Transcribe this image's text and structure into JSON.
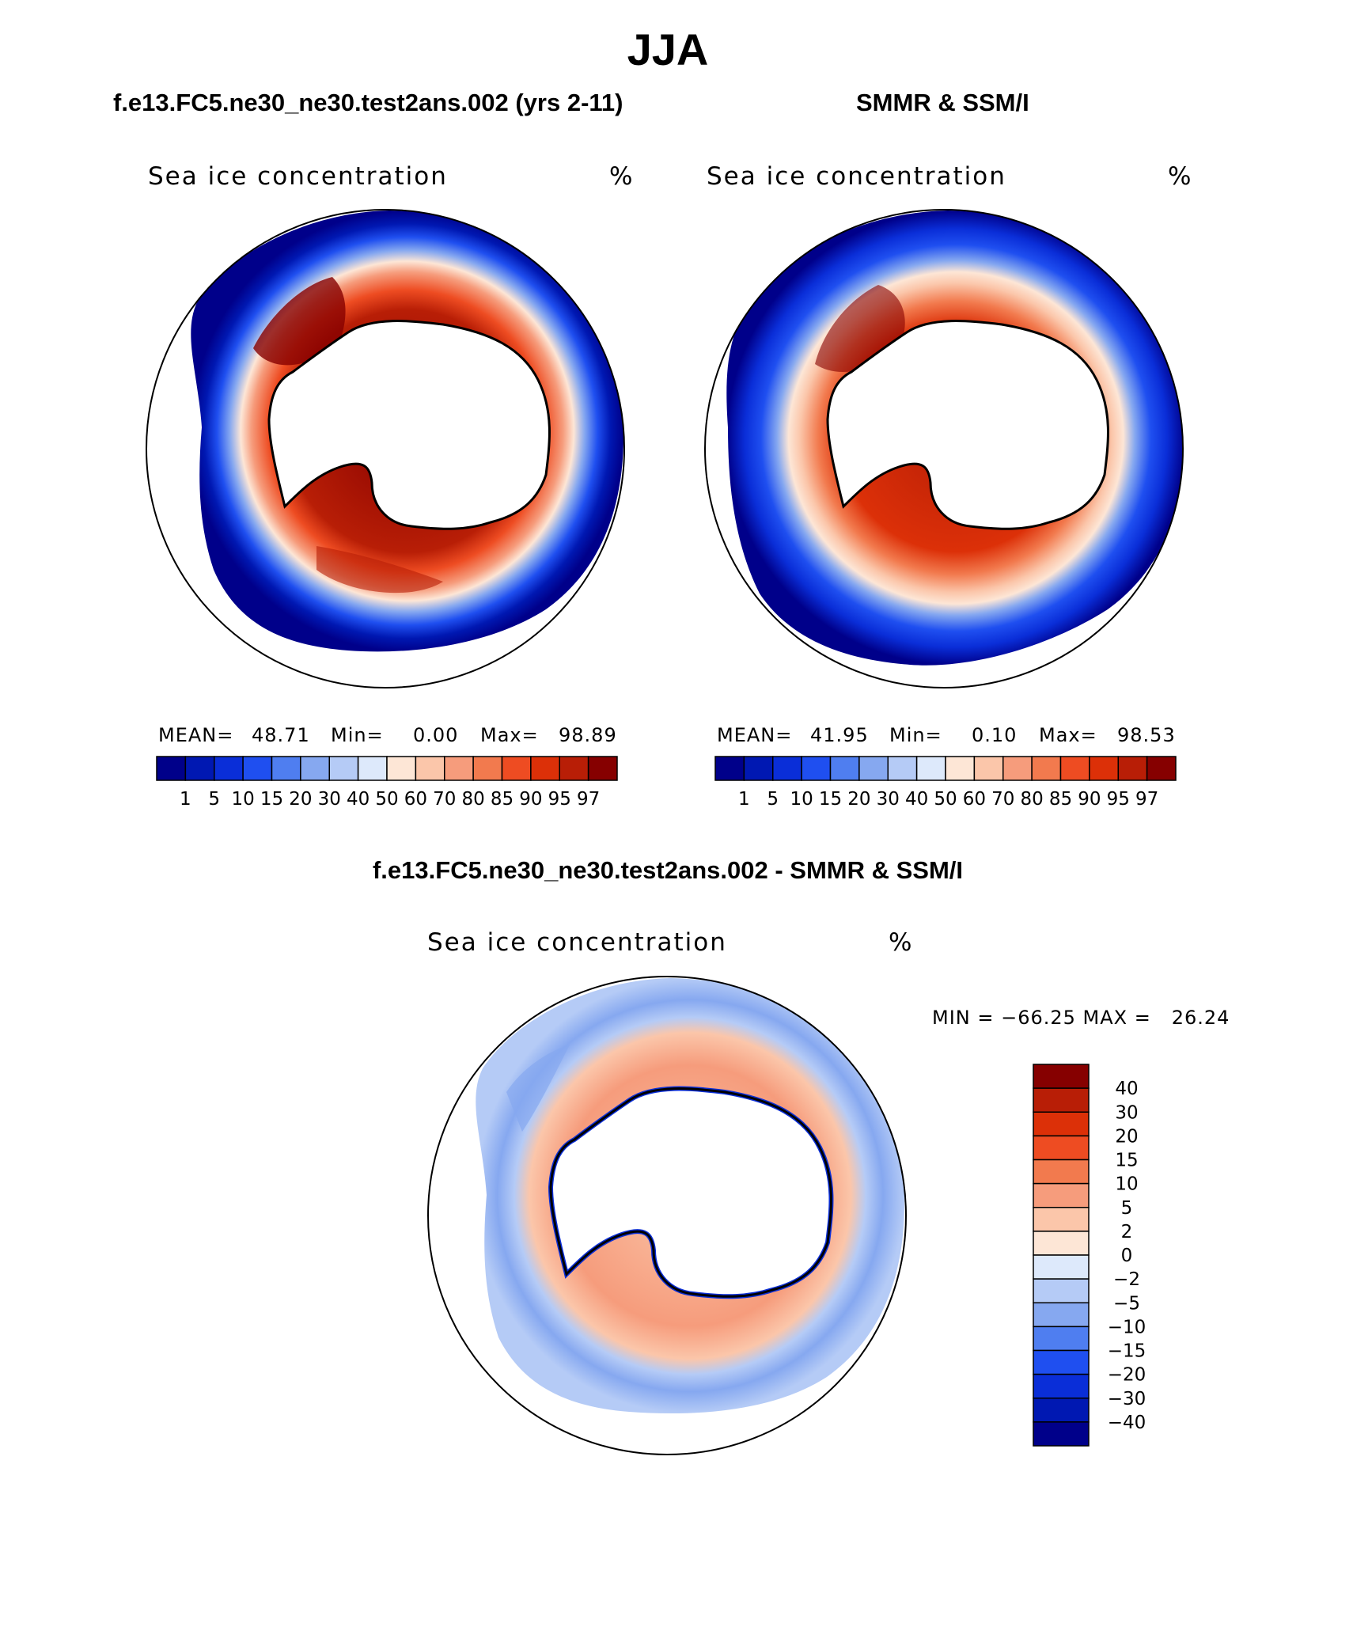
{
  "title": "JJA",
  "panels": [
    {
      "subtitle": "f.e13.FC5.ne30_ne30.test2ans.002 (yrs 2-11)",
      "left_label": "Sea ice concentration",
      "right_label": "%",
      "stats": {
        "mean_label": "MEAN=",
        "mean": "48.71",
        "min_label": "Min=",
        "min": "0.00",
        "max_label": "Max=",
        "max": "98.89"
      }
    },
    {
      "subtitle": "SMMR & SSM/I",
      "left_label": "Sea ice concentration",
      "right_label": "%",
      "stats": {
        "mean_label": "MEAN=",
        "mean": "41.95",
        "min_label": "Min=",
        "min": "0.10",
        "max_label": "Max=",
        "max": "98.53"
      }
    },
    {
      "subtitle": "f.e13.FC5.ne30_ne30.test2ans.002 - SMMR & SSM/I",
      "left_label": "Sea ice concentration",
      "right_label": "%",
      "minmax": "MIN = −66.25 MAX =   26.24"
    }
  ],
  "colorbar_abs": {
    "levels": [
      "1",
      "5",
      "10",
      "15",
      "20",
      "30",
      "40",
      "50",
      "60",
      "70",
      "80",
      "85",
      "90",
      "95",
      "97"
    ],
    "colors": [
      "#00008a",
      "#0018b2",
      "#0a2ed8",
      "#1f4ff0",
      "#4f7ef0",
      "#86a8f0",
      "#b5cbf6",
      "#dde9fb",
      "#fde6d6",
      "#fbc6aa",
      "#f69c7c",
      "#f27a4e",
      "#ee4c22",
      "#dc3008",
      "#b81e06",
      "#860000"
    ]
  },
  "colorbar_diff": {
    "levels": [
      "40",
      "30",
      "20",
      "15",
      "10",
      "5",
      "2",
      "0",
      "−2",
      "−5",
      "−10",
      "−15",
      "−20",
      "−30",
      "−40"
    ],
    "colors": [
      "#860000",
      "#b81e06",
      "#dc3008",
      "#ee4c22",
      "#f27a4e",
      "#f69c7c",
      "#fbc6aa",
      "#fde6d6",
      "#dde9fb",
      "#b5cbf6",
      "#86a8f0",
      "#4f7ef0",
      "#1f4ff0",
      "#0a2ed8",
      "#0018b2",
      "#00008a"
    ]
  }
}
